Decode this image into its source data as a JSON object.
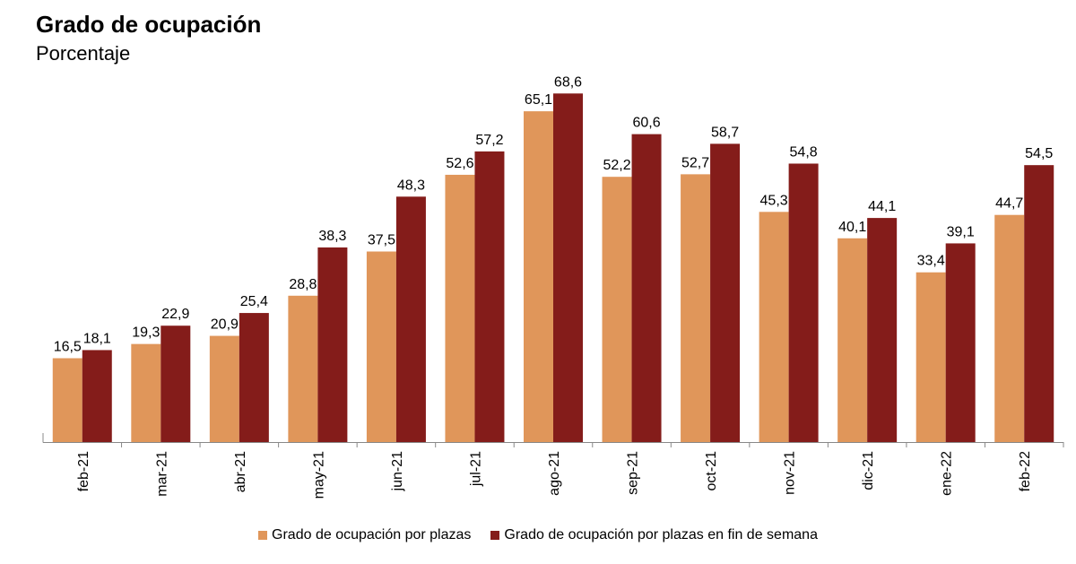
{
  "header": {
    "title": "Grado de ocupación",
    "subtitle": "Porcentaje"
  },
  "colors": {
    "series1": "#E0965A",
    "series2": "#841C1A",
    "axis": "#888888"
  },
  "chart_data": {
    "type": "bar",
    "title": "Grado de ocupación",
    "subtitle": "Porcentaje",
    "xlabel": "",
    "ylabel": "",
    "ylim": [
      0,
      75
    ],
    "grid": false,
    "legend_position": "bottom",
    "categories": [
      "feb-21",
      "mar-21",
      "abr-21",
      "may-21",
      "jun-21",
      "jul-21",
      "ago-21",
      "sep-21",
      "oct-21",
      "nov-21",
      "dic-21",
      "ene-22",
      "feb-22"
    ],
    "series": [
      {
        "name": "Grado de ocupación por plazas",
        "values": [
          16.5,
          19.3,
          20.9,
          28.8,
          37.5,
          52.6,
          65.1,
          52.2,
          52.7,
          45.3,
          40.1,
          33.4,
          44.7
        ],
        "labels": [
          "16,5",
          "19,3",
          "20,9",
          "28,8",
          "37,5",
          "52,6",
          "65,1",
          "52,2",
          "52,7",
          "45,3",
          "40,1",
          "33,4",
          "44,7"
        ]
      },
      {
        "name": "Grado de ocupación por plazas en fin de semana",
        "values": [
          18.1,
          22.9,
          25.4,
          38.3,
          48.3,
          57.2,
          68.6,
          60.6,
          58.7,
          54.8,
          44.1,
          39.1,
          54.5
        ],
        "labels": [
          "18,1",
          "22,9",
          "25,4",
          "38,3",
          "48,3",
          "57,2",
          "68,6",
          "60,6",
          "58,7",
          "54,8",
          "44,1",
          "39,1",
          "54,5"
        ]
      }
    ]
  }
}
